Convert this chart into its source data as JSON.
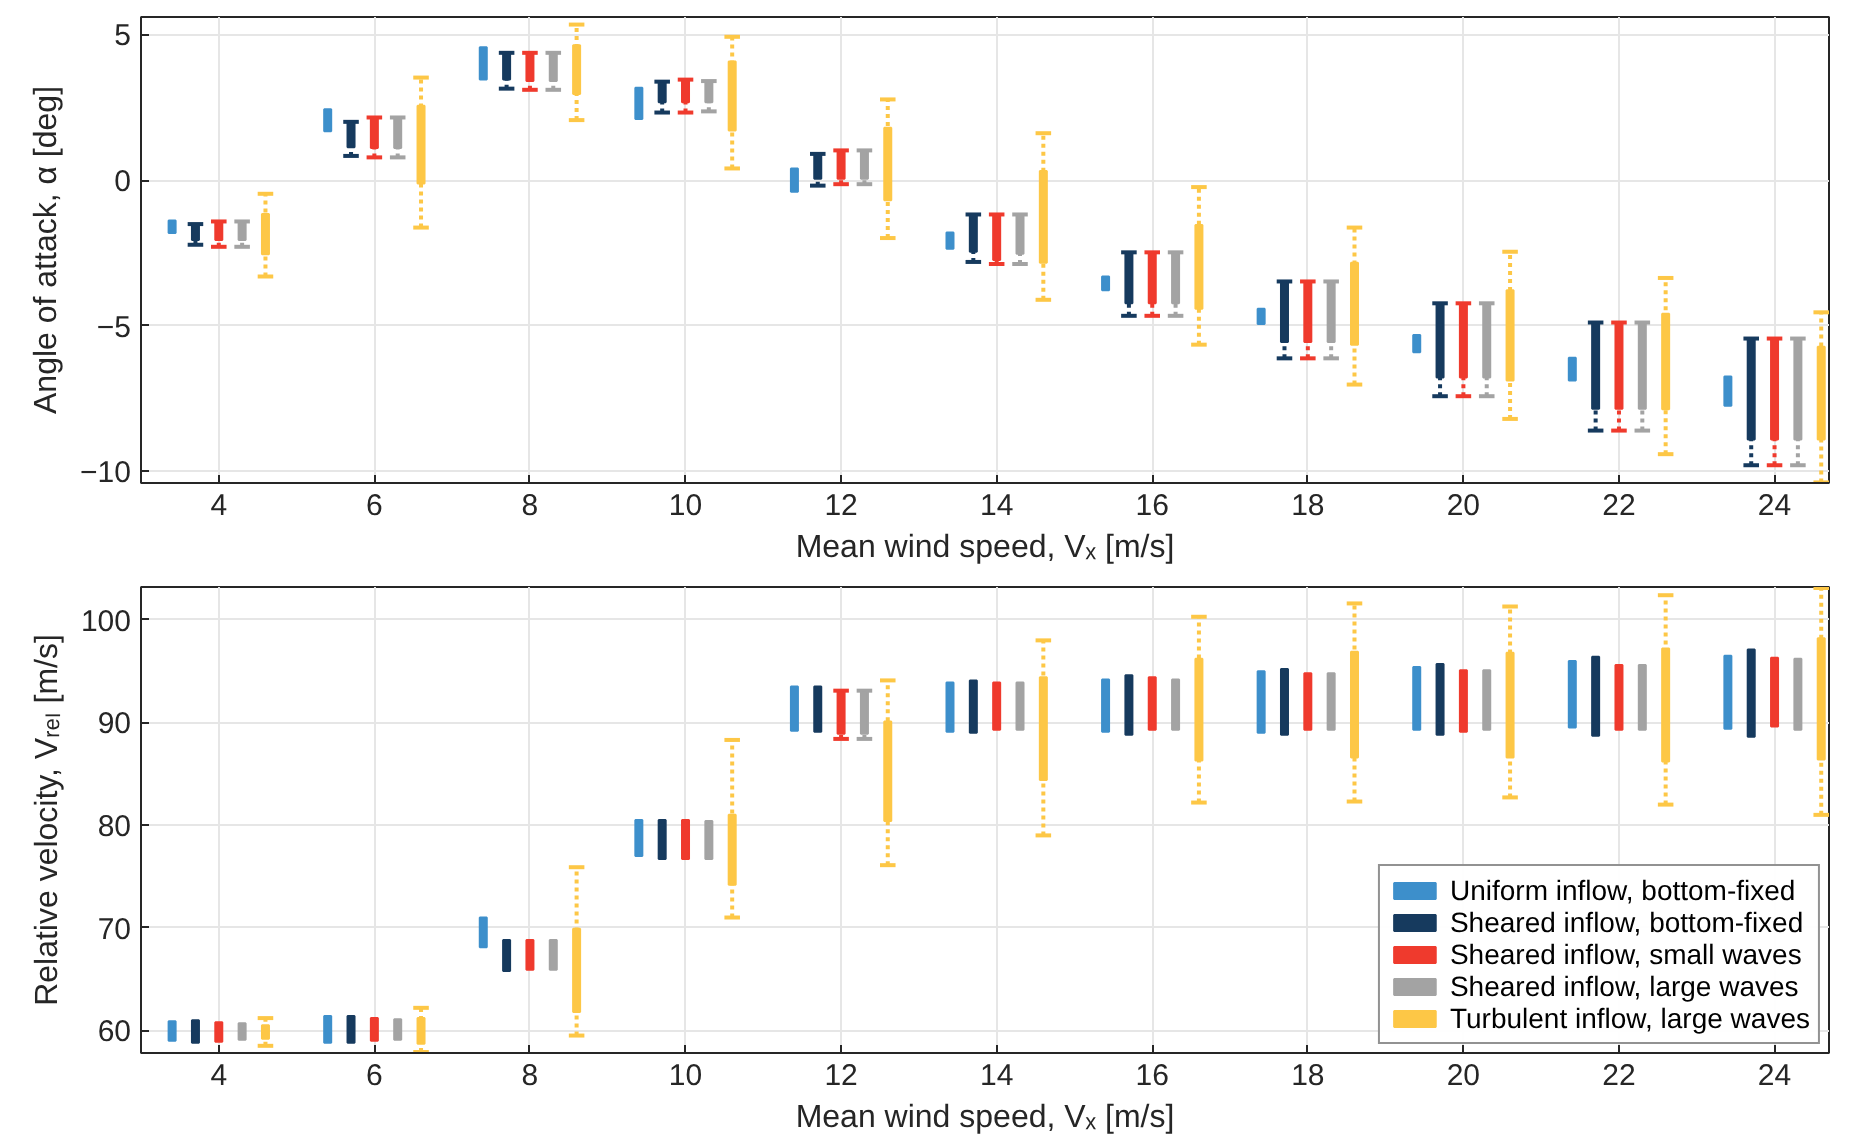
{
  "chart_data": [
    {
      "type": "bar",
      "xlabel": "Mean wind speed, Vₓ [m/s]",
      "ylabel": "Angle of attack, α [deg]",
      "xlim": [
        3,
        24.7
      ],
      "xticks": [
        4,
        6,
        8,
        10,
        12,
        14,
        16,
        18,
        20,
        22,
        24
      ],
      "ylim": [
        -10.4,
        5.6
      ],
      "yticks": [
        -10,
        -5,
        0,
        5
      ],
      "grid": true,
      "legend": false,
      "series": [
        {
          "color": "#3d8fcb",
          "x": [
            3.4,
            5.4,
            7.4,
            9.4,
            11.4,
            13.4,
            15.4,
            17.4,
            19.4,
            21.4,
            23.4
          ],
          "base": [
            -1.82,
            1.68,
            3.45,
            2.1,
            -0.4,
            -2.36,
            -3.78,
            -4.94,
            -5.91,
            -6.88,
            -7.75
          ],
          "values": [
            0.43,
            0.75,
            1.11,
            1.07,
            0.8,
            0.56,
            0.47,
            0.52,
            0.59,
            0.78,
            1.01
          ]
        },
        {
          "color": "#163a5e",
          "x": [
            3.7,
            5.7,
            7.7,
            9.7,
            11.7,
            13.7,
            15.7,
            17.7,
            19.7,
            21.7,
            23.7
          ],
          "base": [
            -2.06,
            1.13,
            3.45,
            2.67,
            0.05,
            -2.46,
            -4.23,
            -5.56,
            -6.78,
            -7.85,
            -8.91
          ],
          "values": [
            0.55,
            0.87,
            0.92,
            0.71,
            0.85,
            1.28,
            1.75,
            2.08,
            2.55,
            2.96,
            3.47
          ],
          "errors": [
            [
              -2.22,
              -1.51
            ],
            [
              0.83,
              2.0
            ],
            [
              3.14,
              4.37
            ],
            [
              2.32,
              3.38
            ],
            [
              -0.19,
              0.9
            ],
            [
              -2.81,
              -1.18
            ],
            [
              -4.66,
              -2.48
            ],
            [
              -6.12,
              -3.48
            ],
            [
              -7.42,
              -4.23
            ],
            [
              -8.6,
              -4.89
            ],
            [
              -9.79,
              -5.44
            ]
          ]
        },
        {
          "color": "#ef3a2d",
          "x": [
            4,
            6,
            8,
            10,
            12,
            14,
            16,
            18,
            20,
            22,
            24
          ],
          "base": [
            -2.06,
            1.1,
            3.4,
            2.67,
            0.05,
            -2.74,
            -4.23,
            -5.56,
            -6.78,
            -7.85,
            -8.91
          ],
          "values": [
            0.64,
            1.05,
            0.97,
            0.78,
            0.97,
            1.56,
            1.75,
            2.08,
            2.55,
            2.96,
            3.47
          ],
          "errors": [
            [
              -2.29,
              -1.42
            ],
            [
              0.78,
              2.15
            ],
            [
              3.1,
              4.37
            ],
            [
              2.32,
              3.45
            ],
            [
              -0.14,
              1.02
            ],
            [
              -2.88,
              -1.18
            ],
            [
              -4.66,
              -2.48
            ],
            [
              -6.12,
              -3.48
            ],
            [
              -7.42,
              -4.23
            ],
            [
              -8.6,
              -4.89
            ],
            [
              -9.79,
              -5.44
            ]
          ]
        },
        {
          "color": "#a3a3a3",
          "x": [
            4.3,
            6.3,
            8.3,
            10.3,
            12.3,
            14.3,
            16.3,
            18.3,
            20.3,
            22.3,
            24.3
          ],
          "base": [
            -2.06,
            1.1,
            3.4,
            2.67,
            0.05,
            -2.53,
            -4.23,
            -5.56,
            -6.78,
            -7.85,
            -8.91
          ],
          "values": [
            0.64,
            1.05,
            0.97,
            0.73,
            0.97,
            1.35,
            1.75,
            2.08,
            2.55,
            2.96,
            3.47
          ],
          "errors": [
            [
              -2.29,
              -1.42
            ],
            [
              0.78,
              2.15
            ],
            [
              3.1,
              4.37
            ],
            [
              2.36,
              3.4
            ],
            [
              -0.14,
              1.02
            ],
            [
              -2.88,
              -1.18
            ],
            [
              -4.66,
              -2.48
            ],
            [
              -6.12,
              -3.48
            ],
            [
              -7.42,
              -4.23
            ],
            [
              -8.6,
              -4.89
            ],
            [
              -9.79,
              -5.44
            ]
          ]
        },
        {
          "color": "#fdc746",
          "x": [
            4.6,
            6.6,
            8.6,
            10.6,
            12.6,
            14.6,
            16.6,
            18.6,
            20.6,
            22.6,
            24.6
          ],
          "base": [
            -2.55,
            -0.12,
            2.96,
            1.7,
            -0.69,
            -2.84,
            -4.42,
            -5.65,
            -6.88,
            -7.87,
            -8.91
          ],
          "values": [
            1.39,
            2.67,
            1.67,
            2.37,
            2.49,
            3.15,
            2.88,
            2.81,
            3.1,
            3.28,
            3.19
          ],
          "errors": [
            [
              -3.31,
              -0.47
            ],
            [
              -1.63,
              3.52
            ],
            [
              2.06,
              5.34
            ],
            [
              0.4,
              4.92
            ],
            [
              -1.99,
              2.77
            ],
            [
              -4.11,
              1.61
            ],
            [
              -5.65,
              -0.24
            ],
            [
              -7.02,
              -1.63
            ],
            [
              -8.2,
              -2.46
            ],
            [
              -9.41,
              -3.36
            ],
            [
              -10.38,
              -4.54
            ]
          ]
        }
      ]
    },
    {
      "type": "bar",
      "xlabel": "Mean wind speed, Vₓ [m/s]",
      "ylabel": "Relative velocity, Vᵣₑₗ [m/s]",
      "xlim": [
        3,
        24.7
      ],
      "xticks": [
        4,
        6,
        8,
        10,
        12,
        14,
        16,
        18,
        20,
        22,
        24
      ],
      "ylim": [
        57.8,
        103.2
      ],
      "yticks": [
        60,
        70,
        80,
        90,
        100
      ],
      "grid": true,
      "legend": "bottom right",
      "series": [
        {
          "name": "Uniform inflow, bottom-fixed",
          "color": "#3d8fcb",
          "x": [
            3.4,
            5.4,
            7.4,
            9.4,
            11.4,
            13.4,
            15.4,
            17.4,
            19.4,
            21.4,
            23.4
          ],
          "base": [
            59.0,
            58.8,
            68.1,
            77.0,
            89.2,
            89.1,
            89.1,
            89.0,
            89.3,
            89.5,
            89.4
          ],
          "values": [
            1.9,
            2.6,
            2.9,
            3.5,
            4.3,
            4.8,
            5.1,
            6.0,
            6.1,
            6.5,
            7.1
          ]
        },
        {
          "name": "Sheared inflow, bottom-fixed",
          "color": "#163a5e",
          "x": [
            3.7,
            5.7,
            7.7,
            9.7,
            11.7,
            13.7,
            15.7,
            17.7,
            19.7,
            21.7,
            23.7
          ],
          "base": [
            58.8,
            58.8,
            65.8,
            76.7,
            89.1,
            89.0,
            88.8,
            88.8,
            88.8,
            88.7,
            88.6
          ],
          "values": [
            2.2,
            2.6,
            3.0,
            3.8,
            4.4,
            5.1,
            5.8,
            6.4,
            6.9,
            7.7,
            8.5
          ]
        },
        {
          "name": "Sheared inflow, small waves",
          "color": "#ef3a2d",
          "x": [
            4,
            6,
            8,
            10,
            12,
            14,
            16,
            18,
            20,
            22,
            24
          ],
          "base": [
            58.9,
            59.0,
            65.9,
            76.7,
            88.9,
            89.3,
            89.3,
            89.3,
            89.1,
            89.3,
            89.6
          ],
          "values": [
            1.9,
            2.2,
            2.9,
            3.8,
            4.2,
            4.6,
            5.1,
            5.5,
            6.0,
            6.3,
            6.7
          ],
          "errors": [
            null,
            null,
            null,
            null,
            [
              88.4,
              93.1
            ],
            null,
            null,
            null,
            null,
            null,
            null
          ]
        },
        {
          "name": "Sheared inflow, large waves",
          "color": "#a3a3a3",
          "x": [
            4.3,
            6.3,
            8.3,
            10.3,
            12.3,
            14.3,
            16.3,
            18.3,
            20.3,
            22.3,
            24.3
          ],
          "base": [
            59.1,
            59.1,
            65.9,
            76.7,
            88.9,
            89.3,
            89.3,
            89.3,
            89.3,
            89.3,
            89.3
          ],
          "values": [
            1.6,
            2.0,
            2.9,
            3.7,
            4.2,
            4.6,
            4.9,
            5.5,
            5.8,
            6.3,
            6.9
          ],
          "errors": [
            null,
            null,
            null,
            null,
            [
              88.4,
              93.1
            ],
            null,
            null,
            null,
            null,
            null,
            null
          ]
        },
        {
          "name": "Turbulent inflow, large waves",
          "color": "#fdc746",
          "x": [
            4.6,
            6.6,
            8.6,
            10.6,
            12.6,
            14.6,
            16.6,
            18.6,
            20.6,
            22.6,
            24.6
          ],
          "base": [
            59.2,
            58.7,
            61.8,
            74.2,
            80.4,
            84.4,
            86.3,
            86.6,
            86.6,
            86.2,
            86.4
          ],
          "values": [
            1.3,
            2.5,
            8.1,
            6.8,
            9.7,
            10.0,
            9.9,
            10.3,
            10.2,
            11.0,
            11.8
          ],
          "errors": [
            [
              58.5,
              61.2
            ],
            [
              57.9,
              62.2
            ],
            [
              59.5,
              75.9
            ],
            [
              71.0,
              88.3
            ],
            [
              76.1,
              94.1
            ],
            [
              79.0,
              98.0
            ],
            [
              82.2,
              100.3
            ],
            [
              82.3,
              101.6
            ],
            [
              82.7,
              101.3
            ],
            [
              82.0,
              102.4
            ],
            [
              81.0,
              103.1
            ]
          ]
        }
      ]
    }
  ]
}
